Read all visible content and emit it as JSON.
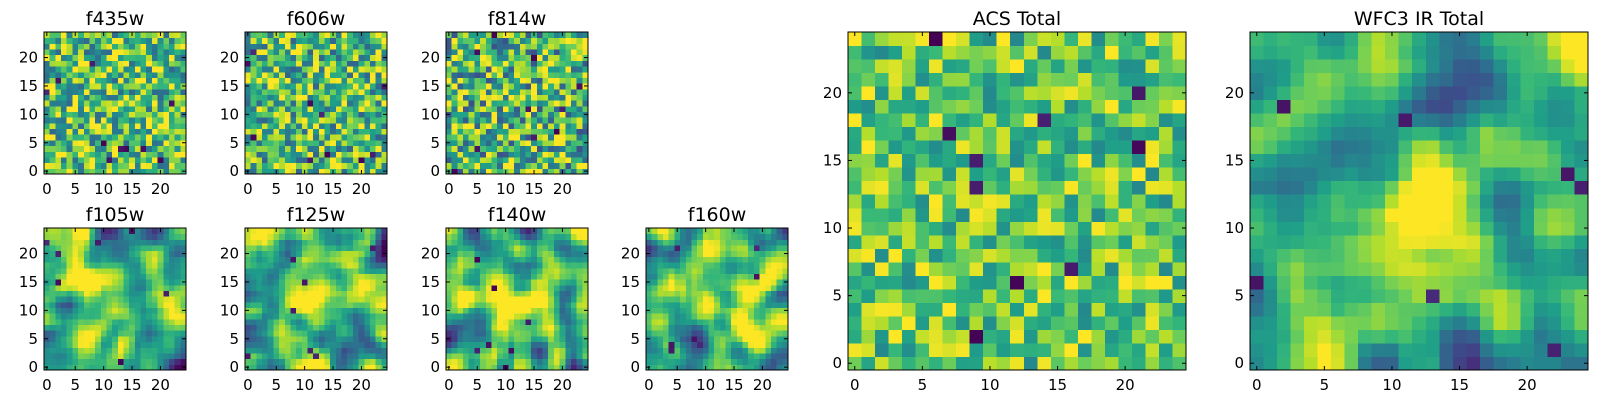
{
  "colormap": "viridis",
  "colors": {
    "background": "#ffffff",
    "axes_edge": "#000000",
    "viridis_stops": [
      "#440154",
      "#482878",
      "#3e4989",
      "#31688e",
      "#26828e",
      "#1f9e89",
      "#35b779",
      "#6ece58",
      "#b5de2b",
      "#fde725"
    ]
  },
  "chart_data": [
    {
      "type": "heatmap",
      "title": "f435w",
      "grid": [
        25,
        25
      ],
      "xlim": [
        -0.5,
        24.5
      ],
      "ylim": [
        -0.5,
        24.5
      ],
      "xticks": [
        0,
        5,
        10,
        15,
        20
      ],
      "yticks": [
        0,
        5,
        10,
        15,
        20
      ],
      "texture": "noise",
      "seed": 11,
      "level": 0.7,
      "contrast": 0.22
    },
    {
      "type": "heatmap",
      "title": "f606w",
      "grid": [
        25,
        25
      ],
      "xlim": [
        -0.5,
        24.5
      ],
      "ylim": [
        -0.5,
        24.5
      ],
      "xticks": [
        0,
        5,
        10,
        15,
        20
      ],
      "yticks": [
        0,
        5,
        10,
        15,
        20
      ],
      "texture": "noise",
      "seed": 23,
      "level": 0.68,
      "contrast": 0.22
    },
    {
      "type": "heatmap",
      "title": "f814w",
      "grid": [
        25,
        25
      ],
      "xlim": [
        -0.5,
        24.5
      ],
      "ylim": [
        -0.5,
        24.5
      ],
      "xticks": [
        0,
        5,
        10,
        15,
        20
      ],
      "yticks": [
        0,
        5,
        10,
        15,
        20
      ],
      "texture": "noise",
      "seed": 37,
      "level": 0.68,
      "contrast": 0.24
    },
    {
      "type": "heatmap",
      "title": "f105w",
      "grid": [
        25,
        25
      ],
      "xlim": [
        -0.5,
        24.5
      ],
      "ylim": [
        -0.5,
        24.5
      ],
      "xticks": [
        0,
        5,
        10,
        15,
        20
      ],
      "yticks": [
        0,
        5,
        10,
        15,
        20
      ],
      "texture": "blob",
      "seed": 41,
      "level": 0.62,
      "contrast": 0.2,
      "peak": 0.22
    },
    {
      "type": "heatmap",
      "title": "f125w",
      "grid": [
        25,
        25
      ],
      "xlim": [
        -0.5,
        24.5
      ],
      "ylim": [
        -0.5,
        24.5
      ],
      "xticks": [
        0,
        5,
        10,
        15,
        20
      ],
      "yticks": [
        0,
        5,
        10,
        15,
        20
      ],
      "texture": "blob",
      "seed": 53,
      "level": 0.62,
      "contrast": 0.2,
      "peak": 0.22
    },
    {
      "type": "heatmap",
      "title": "f140w",
      "grid": [
        25,
        25
      ],
      "xlim": [
        -0.5,
        24.5
      ],
      "ylim": [
        -0.5,
        24.5
      ],
      "xticks": [
        0,
        5,
        10,
        15,
        20
      ],
      "yticks": [
        0,
        5,
        10,
        15,
        20
      ],
      "texture": "blob",
      "seed": 67,
      "level": 0.64,
      "contrast": 0.2,
      "peak": 0.2
    },
    {
      "type": "heatmap",
      "title": "f160w",
      "grid": [
        25,
        25
      ],
      "xlim": [
        -0.5,
        24.5
      ],
      "ylim": [
        -0.5,
        24.5
      ],
      "xticks": [
        0,
        5,
        10,
        15,
        20
      ],
      "yticks": [
        0,
        5,
        10,
        15,
        20
      ],
      "texture": "blob",
      "seed": 79,
      "level": 0.64,
      "contrast": 0.2,
      "peak": 0.22
    },
    {
      "type": "heatmap",
      "title": "ACS Total",
      "grid": [
        25,
        25
      ],
      "xlim": [
        -0.5,
        24.5
      ],
      "ylim": [
        -0.5,
        24.5
      ],
      "xticks": [
        0,
        5,
        10,
        15,
        20
      ],
      "yticks": [
        0,
        5,
        10,
        15,
        20
      ],
      "texture": "noise",
      "seed": 97,
      "level": 0.74,
      "contrast": 0.16
    },
    {
      "type": "heatmap",
      "title": "WFC3 IR Total",
      "grid": [
        25,
        25
      ],
      "xlim": [
        -0.5,
        24.5
      ],
      "ylim": [
        -0.5,
        24.5
      ],
      "xticks": [
        0,
        5,
        10,
        15,
        20
      ],
      "yticks": [
        0,
        5,
        10,
        15,
        20
      ],
      "texture": "blob",
      "seed": 101,
      "level": 0.6,
      "contrast": 0.17,
      "peak": 0.26
    }
  ]
}
